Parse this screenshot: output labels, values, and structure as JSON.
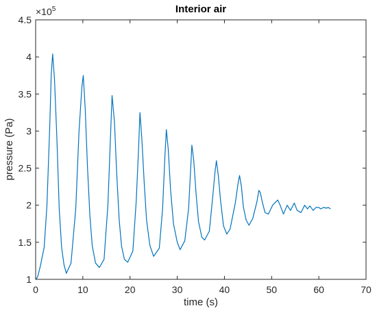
{
  "chart_data": {
    "type": "line",
    "title": "Interior air",
    "xlabel": "time (s)",
    "ylabel": "pressure (Pa)",
    "xlim": [
      0,
      70
    ],
    "ylim": [
      100000,
      450000
    ],
    "x_ticks": [
      0,
      10,
      20,
      30,
      40,
      50,
      60,
      70
    ],
    "y_ticks": [
      100000,
      150000,
      200000,
      250000,
      300000,
      350000,
      400000,
      450000
    ],
    "x_tick_labels": [
      "0",
      "10",
      "20",
      "30",
      "40",
      "50",
      "60",
      "70"
    ],
    "y_tick_labels": [
      "1",
      "1.5",
      "2",
      "2.5",
      "3",
      "3.5",
      "4",
      "4.5"
    ],
    "y_exponent_label": "×10",
    "y_exponent_power": "5",
    "grid": false,
    "line_color": "#0072BD",
    "series": [
      {
        "x": [
          0.0,
          0.4,
          1.0,
          1.8,
          2.4,
          3.0,
          3.3,
          3.6,
          4.0,
          4.5,
          5.0,
          5.5,
          6.0,
          6.5,
          7.5,
          8.5,
          9.2,
          9.8,
          10.1,
          10.5,
          11.0,
          11.5,
          12.0,
          12.7,
          13.5,
          14.5,
          15.3,
          15.9,
          16.2,
          16.7,
          17.2,
          17.7,
          18.2,
          18.8,
          19.5,
          20.6,
          21.3,
          21.8,
          22.1,
          22.5,
          23.0,
          23.5,
          24.2,
          25.0,
          26.2,
          26.9,
          27.4,
          27.7,
          28.1,
          28.6,
          29.2,
          30.0,
          30.6,
          31.6,
          32.4,
          32.9,
          33.1,
          33.5,
          34.0,
          34.5,
          35.2,
          35.8,
          36.8,
          37.5,
          38.0,
          38.3,
          38.7,
          39.2,
          39.8,
          40.5,
          41.2,
          42.3,
          42.9,
          43.2,
          43.6,
          44.0,
          44.6,
          45.2,
          46.0,
          46.9,
          47.3,
          47.6,
          48.0,
          48.6,
          49.3,
          50.2,
          51.3,
          51.8,
          52.5,
          53.3,
          54.0,
          54.8,
          55.4,
          56.2,
          57.0,
          57.6,
          58.1,
          58.8,
          59.4,
          60.0,
          60.4,
          61.0,
          61.6,
          62.0,
          62.5
        ],
        "y": [
          100000,
          103000,
          118000,
          143000,
          200000,
          310000,
          375000,
          404000,
          370000,
          290000,
          195000,
          143000,
          120000,
          108000,
          122000,
          195000,
          300000,
          360000,
          375000,
          330000,
          250000,
          185000,
          145000,
          122000,
          116000,
          127000,
          200000,
          300000,
          348000,
          312000,
          240000,
          180000,
          145000,
          127000,
          123000,
          138000,
          205000,
          275000,
          325000,
          290000,
          230000,
          180000,
          146000,
          131000,
          142000,
          195000,
          268000,
          302000,
          275000,
          220000,
          175000,
          150000,
          140000,
          152000,
          195000,
          255000,
          281000,
          260000,
          215000,
          178000,
          157000,
          153000,
          165000,
          210000,
          245000,
          260000,
          240000,
          205000,
          172000,
          161000,
          168000,
          203000,
          230000,
          240000,
          225000,
          198000,
          180000,
          173000,
          182000,
          205000,
          220000,
          217000,
          205000,
          190000,
          188000,
          200000,
          207000,
          200000,
          188000,
          200000,
          193000,
          203000,
          193000,
          190000,
          200000,
          195000,
          199000,
          193000,
          197000,
          197000,
          195000,
          197000,
          196000,
          197000,
          195000
        ]
      }
    ]
  }
}
